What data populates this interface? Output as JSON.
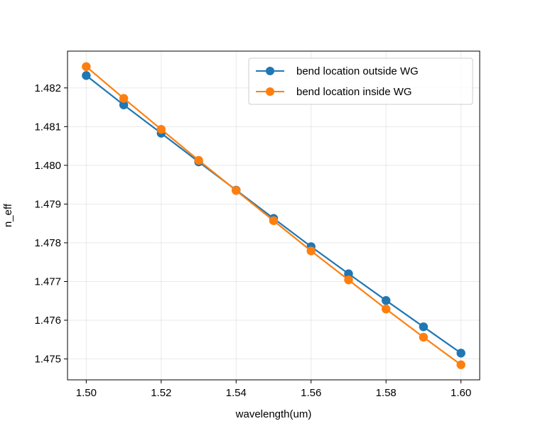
{
  "chart_data": {
    "type": "line",
    "xlabel": "wavelength(um)",
    "ylabel": "n_eff",
    "xlim": [
      1.495,
      1.605
    ],
    "ylim": [
      1.47446,
      1.48295
    ],
    "grid": true,
    "legend_position": "upper right",
    "x": [
      1.5,
      1.51,
      1.52,
      1.53,
      1.54,
      1.55,
      1.56,
      1.57,
      1.58,
      1.59,
      1.6
    ],
    "x_ticks": [
      "1.50",
      "1.52",
      "1.54",
      "1.56",
      "1.58",
      "1.60"
    ],
    "y_ticks": [
      "1.475",
      "1.476",
      "1.477",
      "1.478",
      "1.479",
      "1.480",
      "1.481",
      "1.482"
    ],
    "series": [
      {
        "name": "bend location outside WG",
        "color": "#1f77b4",
        "marker": "circle",
        "values": [
          1.48232,
          1.48156,
          1.48083,
          1.48009,
          1.47936,
          1.47863,
          1.4779,
          1.4772,
          1.47651,
          1.47583,
          1.47515
        ]
      },
      {
        "name": "bend location inside WG",
        "color": "#ff7f0e",
        "marker": "circle",
        "values": [
          1.48255,
          1.48173,
          1.48093,
          1.48013,
          1.47935,
          1.47857,
          1.47779,
          1.47704,
          1.47629,
          1.47556,
          1.47485
        ]
      }
    ]
  }
}
